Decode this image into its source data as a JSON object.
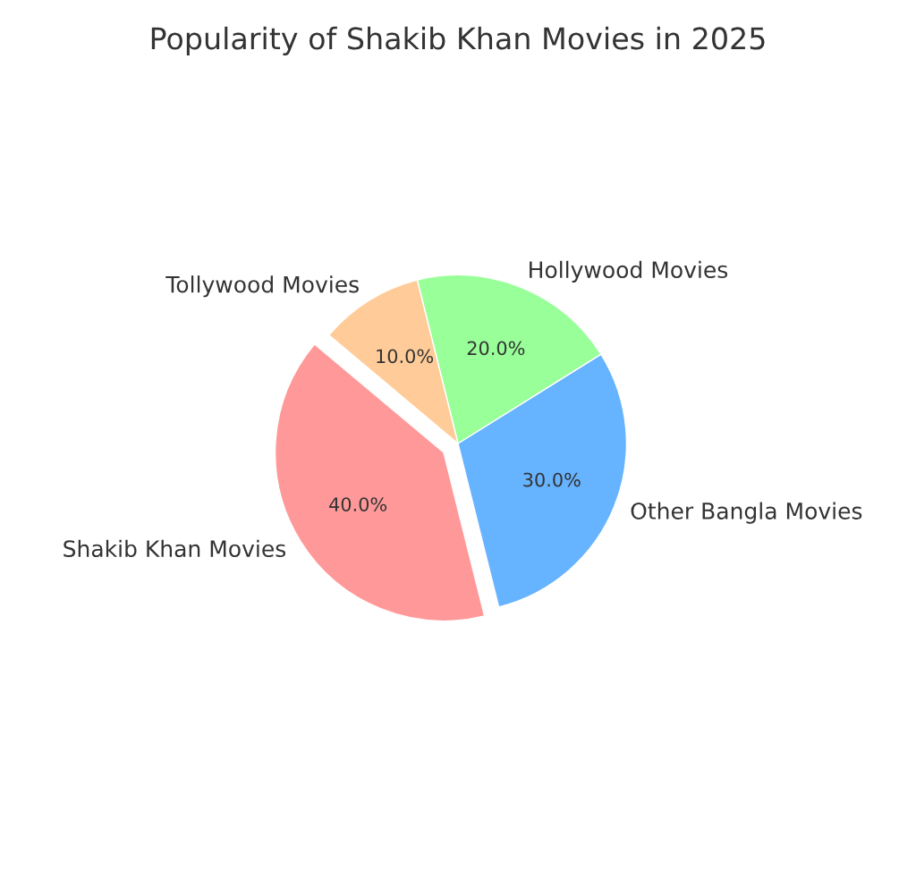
{
  "chart_data": {
    "type": "pie",
    "title": "Popularity of Shakib Khan Movies in 2025",
    "categories": [
      "Shakib Khan Movies",
      "Other Bangla Movies",
      "Hollywood Movies",
      "Tollywood Movies"
    ],
    "values": [
      40,
      30,
      20,
      10
    ],
    "colors": [
      "#ff9999",
      "#66b3ff",
      "#99ff99",
      "#ffcc99"
    ],
    "value_labels": [
      "40.0%",
      "30.0%",
      "20.0%",
      "10.0%"
    ]
  }
}
